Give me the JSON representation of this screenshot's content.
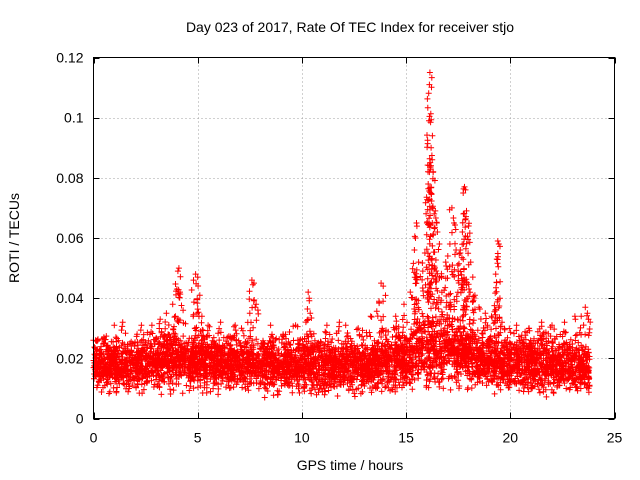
{
  "chart_data": {
    "type": "scatter",
    "title": "Day 023 of 2017, Rate Of TEC Index for receiver stjo",
    "xlabel": "GPS time / hours",
    "ylabel": "ROTI / TECUs",
    "xlim": [
      0,
      25
    ],
    "ylim": [
      0,
      0.12
    ],
    "x_ticks": [
      0,
      5,
      10,
      15,
      20,
      25
    ],
    "x_tick_labels": [
      "0",
      "5",
      "10",
      "15",
      "20",
      "25"
    ],
    "y_ticks": [
      0,
      0.02,
      0.04,
      0.06,
      0.08,
      0.1,
      0.12
    ],
    "y_tick_labels": [
      "0",
      "0.02",
      "0.04",
      "0.06",
      "0.08",
      "0.1",
      "0.12"
    ],
    "grid": true,
    "marker": "+",
    "color": "#ff0000",
    "series": [
      {
        "name": "ROTI",
        "baseline_profile": {
          "x": [
            0,
            2,
            4,
            6,
            8,
            10,
            12,
            14,
            15,
            16,
            17,
            18,
            19,
            20,
            22,
            23.8
          ],
          "low": [
            0.007,
            0.005,
            0.007,
            0.006,
            0.006,
            0.006,
            0.006,
            0.006,
            0.005,
            0.006,
            0.007,
            0.006,
            0.006,
            0.006,
            0.005,
            0.005
          ],
          "high": [
            0.026,
            0.027,
            0.03,
            0.028,
            0.027,
            0.027,
            0.027,
            0.028,
            0.032,
            0.038,
            0.037,
            0.033,
            0.029,
            0.028,
            0.028,
            0.027
          ]
        },
        "spikes": [
          {
            "x": 0.1,
            "y": 0.026
          },
          {
            "x": 0.5,
            "y": 0.027
          },
          {
            "x": 1.0,
            "y": 0.031
          },
          {
            "x": 1.4,
            "y": 0.032
          },
          {
            "x": 2.3,
            "y": 0.031
          },
          {
            "x": 2.8,
            "y": 0.031
          },
          {
            "x": 3.2,
            "y": 0.033
          },
          {
            "x": 3.5,
            "y": 0.035
          },
          {
            "x": 3.8,
            "y": 0.038
          },
          {
            "x": 4.0,
            "y": 0.043
          },
          {
            "x": 4.05,
            "y": 0.049
          },
          {
            "x": 4.1,
            "y": 0.05
          },
          {
            "x": 4.15,
            "y": 0.042
          },
          {
            "x": 4.3,
            "y": 0.036
          },
          {
            "x": 4.8,
            "y": 0.046
          },
          {
            "x": 4.9,
            "y": 0.048
          },
          {
            "x": 5.0,
            "y": 0.047
          },
          {
            "x": 5.1,
            "y": 0.041
          },
          {
            "x": 5.2,
            "y": 0.034
          },
          {
            "x": 5.5,
            "y": 0.031
          },
          {
            "x": 6.1,
            "y": 0.032
          },
          {
            "x": 6.8,
            "y": 0.031
          },
          {
            "x": 7.1,
            "y": 0.03
          },
          {
            "x": 7.5,
            "y": 0.035
          },
          {
            "x": 7.6,
            "y": 0.046
          },
          {
            "x": 7.7,
            "y": 0.045
          },
          {
            "x": 7.8,
            "y": 0.038
          },
          {
            "x": 8.5,
            "y": 0.031
          },
          {
            "x": 9.1,
            "y": 0.028
          },
          {
            "x": 9.7,
            "y": 0.031
          },
          {
            "x": 10.3,
            "y": 0.042
          },
          {
            "x": 10.35,
            "y": 0.04
          },
          {
            "x": 10.4,
            "y": 0.035
          },
          {
            "x": 11.2,
            "y": 0.031
          },
          {
            "x": 11.8,
            "y": 0.032
          },
          {
            "x": 12.1,
            "y": 0.031
          },
          {
            "x": 12.7,
            "y": 0.03
          },
          {
            "x": 13.3,
            "y": 0.034
          },
          {
            "x": 13.7,
            "y": 0.039
          },
          {
            "x": 13.8,
            "y": 0.045
          },
          {
            "x": 13.9,
            "y": 0.044
          },
          {
            "x": 14.5,
            "y": 0.034
          },
          {
            "x": 14.9,
            "y": 0.038
          },
          {
            "x": 15.2,
            "y": 0.042
          },
          {
            "x": 15.4,
            "y": 0.056
          },
          {
            "x": 15.45,
            "y": 0.06
          },
          {
            "x": 15.5,
            "y": 0.065
          },
          {
            "x": 15.6,
            "y": 0.052
          },
          {
            "x": 15.8,
            "y": 0.049
          },
          {
            "x": 15.9,
            "y": 0.055
          },
          {
            "x": 16.0,
            "y": 0.065
          },
          {
            "x": 16.05,
            "y": 0.082
          },
          {
            "x": 16.1,
            "y": 0.099
          },
          {
            "x": 16.12,
            "y": 0.111
          },
          {
            "x": 16.14,
            "y": 0.115
          },
          {
            "x": 16.2,
            "y": 0.09
          },
          {
            "x": 16.25,
            "y": 0.086
          },
          {
            "x": 16.3,
            "y": 0.082
          },
          {
            "x": 16.35,
            "y": 0.068
          },
          {
            "x": 16.4,
            "y": 0.069
          },
          {
            "x": 16.5,
            "y": 0.062
          },
          {
            "x": 16.6,
            "y": 0.058
          },
          {
            "x": 16.7,
            "y": 0.047
          },
          {
            "x": 16.9,
            "y": 0.052
          },
          {
            "x": 17.0,
            "y": 0.054
          },
          {
            "x": 17.1,
            "y": 0.058
          },
          {
            "x": 17.2,
            "y": 0.07
          },
          {
            "x": 17.3,
            "y": 0.065
          },
          {
            "x": 17.4,
            "y": 0.056
          },
          {
            "x": 17.5,
            "y": 0.049
          },
          {
            "x": 17.6,
            "y": 0.055
          },
          {
            "x": 17.7,
            "y": 0.062
          },
          {
            "x": 17.75,
            "y": 0.068
          },
          {
            "x": 17.8,
            "y": 0.077
          },
          {
            "x": 17.85,
            "y": 0.076
          },
          {
            "x": 17.9,
            "y": 0.069
          },
          {
            "x": 18.0,
            "y": 0.064
          },
          {
            "x": 18.1,
            "y": 0.052
          },
          {
            "x": 18.2,
            "y": 0.047
          },
          {
            "x": 18.3,
            "y": 0.041
          },
          {
            "x": 18.5,
            "y": 0.037
          },
          {
            "x": 18.8,
            "y": 0.035
          },
          {
            "x": 19.1,
            "y": 0.034
          },
          {
            "x": 19.3,
            "y": 0.048
          },
          {
            "x": 19.35,
            "y": 0.053
          },
          {
            "x": 19.4,
            "y": 0.059
          },
          {
            "x": 19.45,
            "y": 0.058
          },
          {
            "x": 19.5,
            "y": 0.04
          },
          {
            "x": 19.6,
            "y": 0.032
          },
          {
            "x": 20.3,
            "y": 0.031
          },
          {
            "x": 20.9,
            "y": 0.03
          },
          {
            "x": 21.5,
            "y": 0.032
          },
          {
            "x": 22.0,
            "y": 0.031
          },
          {
            "x": 22.6,
            "y": 0.032
          },
          {
            "x": 23.1,
            "y": 0.034
          },
          {
            "x": 23.4,
            "y": 0.034
          },
          {
            "x": 23.6,
            "y": 0.037
          },
          {
            "x": 23.7,
            "y": 0.035
          },
          {
            "x": 23.75,
            "y": 0.033
          }
        ]
      }
    ]
  }
}
